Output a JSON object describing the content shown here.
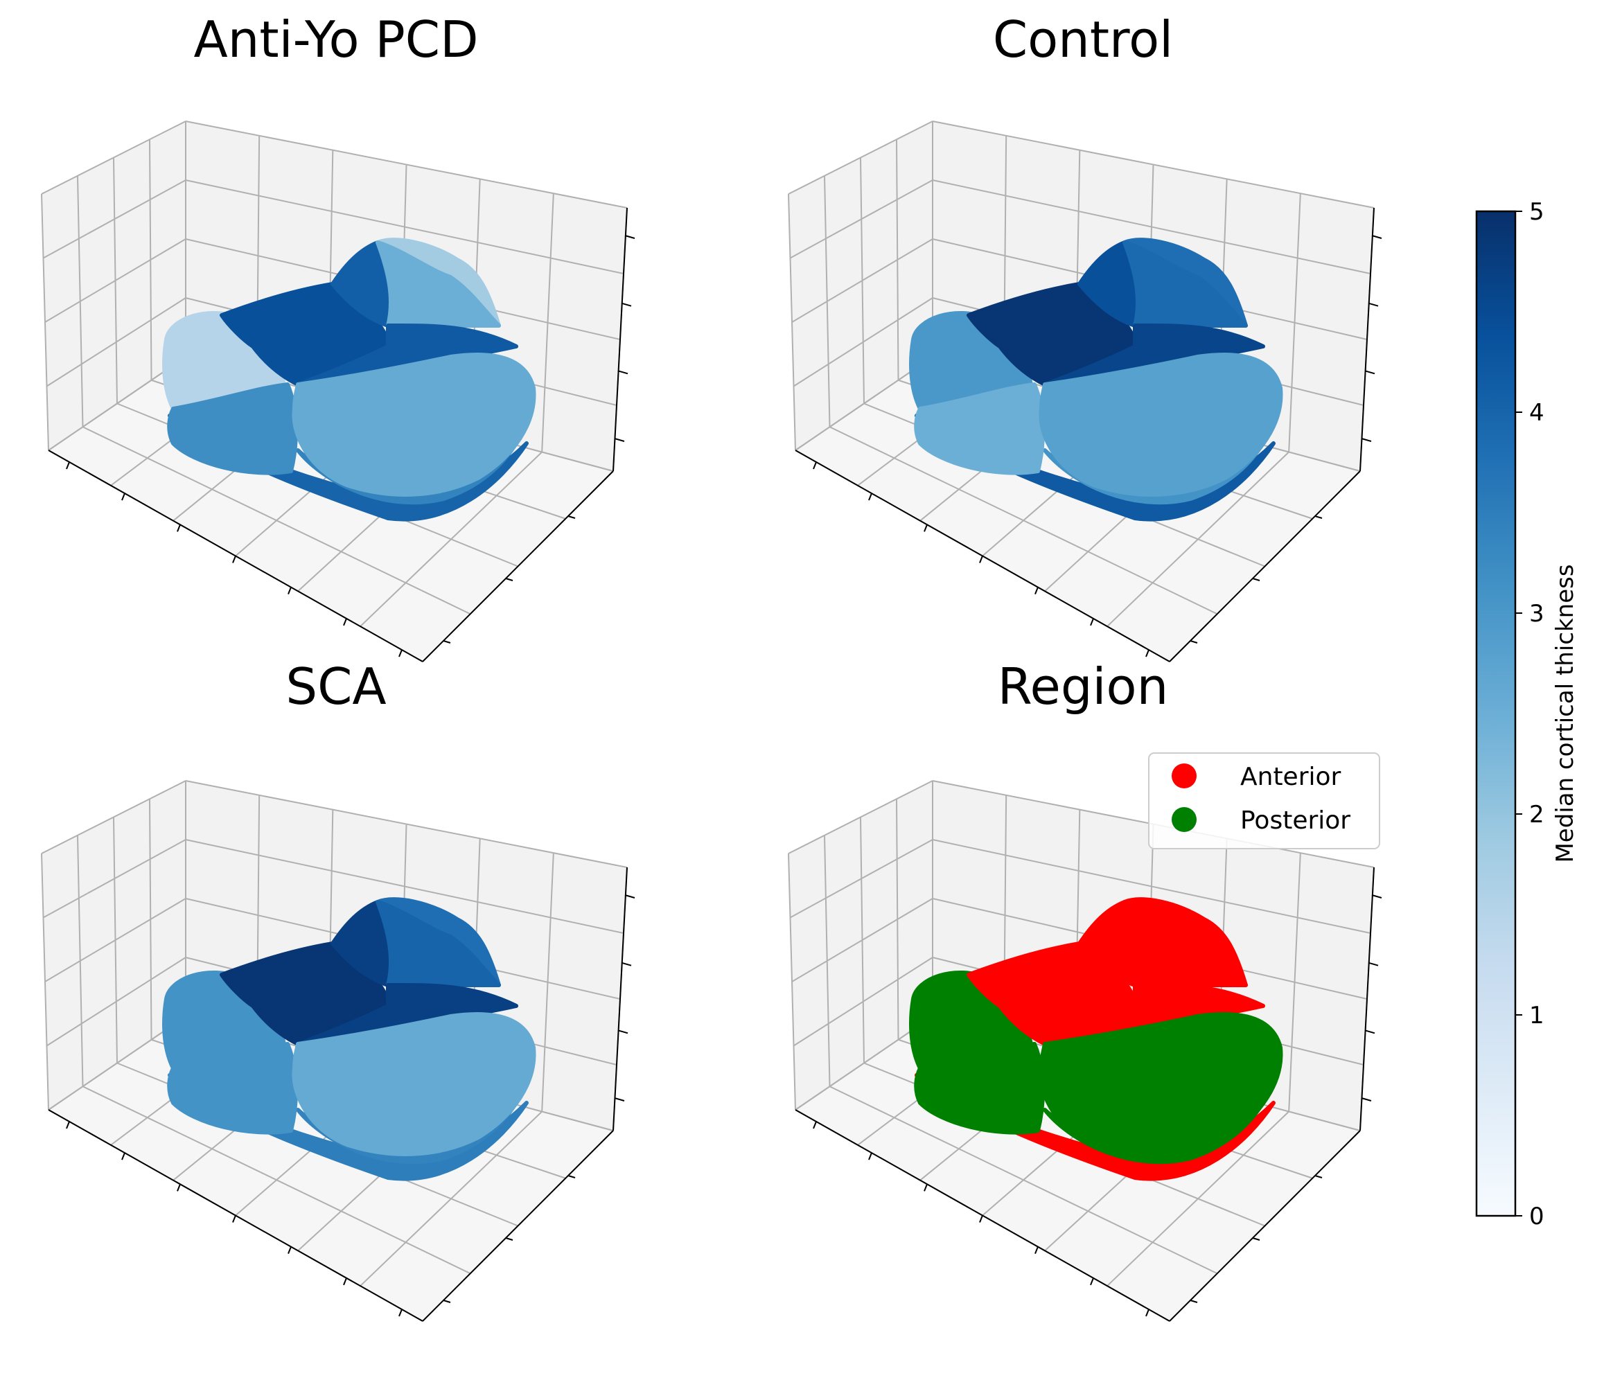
{
  "chart_data": [
    {
      "type": "scatter",
      "title": "Anti-Yo PCD",
      "value_by_region": [
        {
          "region": "anterior-top",
          "value": 4.1
        },
        {
          "region": "anterior-upper-right",
          "value": 2.5
        },
        {
          "region": "anterior-upper-far",
          "value": 1.8
        },
        {
          "region": "anterior-middle",
          "value": 4.4
        },
        {
          "region": "anterior-right-band",
          "value": 4.2
        },
        {
          "region": "posterior-left-upper",
          "value": 1.5
        },
        {
          "region": "posterior-left-lower",
          "value": 3.2
        },
        {
          "region": "posterior-right",
          "value": 2.6
        },
        {
          "region": "posterior-bottom-rim",
          "value": 3.4
        },
        {
          "region": "bottom-edge",
          "value": 4.0
        }
      ]
    },
    {
      "type": "scatter",
      "title": "Control",
      "value_by_region": [
        {
          "region": "anterior-top",
          "value": 4.4
        },
        {
          "region": "anterior-upper-right",
          "value": 3.9
        },
        {
          "region": "anterior-upper-far",
          "value": 3.8
        },
        {
          "region": "anterior-middle",
          "value": 4.9
        },
        {
          "region": "anterior-right-band",
          "value": 4.6
        },
        {
          "region": "posterior-left-upper",
          "value": 3.0
        },
        {
          "region": "posterior-left-lower",
          "value": 2.5
        },
        {
          "region": "posterior-right",
          "value": 2.8
        },
        {
          "region": "posterior-bottom-rim",
          "value": 3.1
        },
        {
          "region": "bottom-edge",
          "value": 4.2
        }
      ]
    },
    {
      "type": "scatter",
      "title": "SCA",
      "value_by_region": [
        {
          "region": "anterior-top",
          "value": 4.7
        },
        {
          "region": "anterior-upper-right",
          "value": 4.0
        },
        {
          "region": "anterior-upper-far",
          "value": 3.8
        },
        {
          "region": "anterior-middle",
          "value": 4.9
        },
        {
          "region": "anterior-right-band",
          "value": 4.7
        },
        {
          "region": "posterior-left-upper",
          "value": 3.1
        },
        {
          "region": "posterior-left-lower",
          "value": 3.1
        },
        {
          "region": "posterior-right",
          "value": 2.6
        },
        {
          "region": "posterior-bottom-rim",
          "value": 3.4
        },
        {
          "region": "bottom-edge",
          "value": 3.5
        }
      ]
    },
    {
      "type": "scatter",
      "title": "Region",
      "legend": {
        "placement": "upper right",
        "entries": [
          {
            "label": "Anterior",
            "color": "#ff0000"
          },
          {
            "label": "Posterior",
            "color": "#008000"
          }
        ]
      }
    }
  ],
  "colorbar": {
    "label": "Median cortical thickness",
    "range": [
      0,
      5
    ],
    "ticks": [
      "0",
      "1",
      "2",
      "3",
      "4",
      "5"
    ],
    "colormap": "Blues",
    "colors": [
      "#f7fbff",
      "#deebf7",
      "#c6dbef",
      "#9ecae1",
      "#6baed6",
      "#4292c6",
      "#2171b5",
      "#08519c",
      "#08306b"
    ]
  }
}
